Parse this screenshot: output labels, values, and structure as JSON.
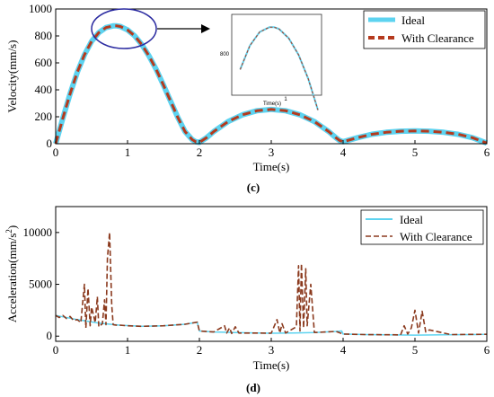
{
  "chart_data": [
    {
      "type": "line",
      "panel_label": "(c)",
      "xlabel": "Time(s)",
      "ylabel": "Velocity(mm/s)",
      "xlim": [
        0,
        6
      ],
      "ylim": [
        0,
        1000
      ],
      "xticks": [
        "0",
        "1",
        "2",
        "3",
        "4",
        "5",
        "6"
      ],
      "yticks": [
        "0",
        "200",
        "400",
        "600",
        "800",
        "1000"
      ],
      "legend_position": "top-right",
      "grid": false,
      "series": [
        {
          "name": "Ideal",
          "color": "#5dd3f0",
          "style": "solid",
          "x": [
            0,
            0.1,
            0.2,
            0.3,
            0.4,
            0.5,
            0.6,
            0.7,
            0.8,
            0.85,
            0.9,
            1.0,
            1.1,
            1.2,
            1.3,
            1.4,
            1.5,
            1.6,
            1.7,
            1.8,
            1.9,
            1.95,
            2.0,
            2.1,
            2.2,
            2.4,
            2.6,
            2.8,
            3.0,
            3.2,
            3.4,
            3.6,
            3.8,
            3.9,
            3.95,
            4.0,
            4.2,
            4.4,
            4.6,
            4.8,
            5.0,
            5.2,
            5.4,
            5.6,
            5.8,
            6.0
          ],
          "y": [
            0,
            190,
            370,
            530,
            660,
            760,
            825,
            862,
            875,
            875,
            870,
            845,
            800,
            735,
            650,
            550,
            435,
            315,
            195,
            90,
            30,
            15,
            10,
            45,
            90,
            165,
            215,
            245,
            255,
            245,
            215,
            165,
            90,
            45,
            25,
            15,
            45,
            70,
            85,
            93,
            95,
            93,
            85,
            70,
            45,
            5
          ]
        },
        {
          "name": "With Clearance",
          "color": "#b53a1e",
          "style": "dashed",
          "x": [
            0,
            0.1,
            0.2,
            0.3,
            0.4,
            0.5,
            0.6,
            0.7,
            0.8,
            0.85,
            0.9,
            1.0,
            1.1,
            1.2,
            1.3,
            1.4,
            1.5,
            1.6,
            1.7,
            1.8,
            1.9,
            1.95,
            2.0,
            2.1,
            2.2,
            2.4,
            2.6,
            2.8,
            3.0,
            3.2,
            3.4,
            3.6,
            3.8,
            3.9,
            3.95,
            4.0,
            4.2,
            4.4,
            4.6,
            4.8,
            5.0,
            5.2,
            5.4,
            5.6,
            5.8,
            6.0
          ],
          "y": [
            0,
            190,
            370,
            530,
            660,
            760,
            825,
            862,
            875,
            875,
            870,
            845,
            800,
            735,
            650,
            550,
            435,
            315,
            195,
            90,
            30,
            15,
            10,
            45,
            90,
            165,
            215,
            245,
            255,
            245,
            215,
            165,
            90,
            45,
            25,
            15,
            45,
            70,
            85,
            93,
            95,
            93,
            85,
            70,
            45,
            5
          ]
        }
      ],
      "inset": {
        "xlabel": "Time(s)",
        "ytick": "800",
        "xtick": "1"
      }
    },
    {
      "type": "line",
      "panel_label": "(d)",
      "xlabel": "Time(s)",
      "ylabel": "Acceleration(mm/s",
      "ylabel_sup": "2",
      "ylabel_end": ")",
      "xlim": [
        0,
        6
      ],
      "ylim": [
        -500,
        12500
      ],
      "xticks": [
        "0",
        "1",
        "2",
        "3",
        "4",
        "5",
        "6"
      ],
      "yticks": [
        "0",
        "5000",
        "10000"
      ],
      "ytick_values": [
        0,
        5000,
        10000
      ],
      "legend_position": "top-right",
      "grid": false,
      "series": [
        {
          "name": "Ideal",
          "color": "#5dd3f0",
          "style": "solid",
          "x": [
            0,
            0.3,
            0.6,
            0.9,
            1.2,
            1.5,
            1.8,
            1.97,
            2.0,
            2.2,
            2.5,
            2.8,
            3.0,
            3.3,
            3.6,
            3.9,
            3.98,
            4.0,
            4.3,
            4.6,
            5.0,
            5.4,
            5.8,
            6.0
          ],
          "y": [
            2000,
            1600,
            1250,
            1050,
            950,
            1000,
            1150,
            1350,
            500,
            400,
            350,
            300,
            280,
            300,
            350,
            450,
            500,
            200,
            150,
            120,
            100,
            120,
            150,
            180
          ]
        },
        {
          "name": "With Clearance",
          "color": "#8b3a1e",
          "style": "dashed",
          "x": [
            0,
            0.05,
            0.1,
            0.15,
            0.2,
            0.25,
            0.3,
            0.35,
            0.4,
            0.42,
            0.45,
            0.48,
            0.5,
            0.55,
            0.58,
            0.6,
            0.65,
            0.68,
            0.7,
            0.72,
            0.75,
            0.78,
            0.8,
            0.85,
            0.9,
            1.0,
            1.2,
            1.5,
            1.8,
            1.97,
            2.0,
            2.2,
            2.35,
            2.38,
            2.42,
            2.45,
            2.5,
            2.55,
            2.8,
            3.0,
            3.08,
            3.12,
            3.15,
            3.2,
            3.35,
            3.38,
            3.4,
            3.42,
            3.45,
            3.48,
            3.5,
            3.55,
            3.6,
            3.9,
            4.0,
            4.3,
            4.8,
            4.85,
            4.9,
            4.95,
            5.0,
            5.05,
            5.1,
            5.15,
            5.2,
            5.5,
            6.0
          ],
          "y": [
            2000,
            1800,
            2000,
            1700,
            1900,
            1500,
            1600,
            1300,
            5000,
            800,
            4600,
            1000,
            2800,
            1300,
            3800,
            900,
            1200,
            3500,
            1100,
            7500,
            10000,
            3000,
            1100,
            1050,
            1050,
            1000,
            950,
            1000,
            1150,
            1350,
            500,
            400,
            1000,
            300,
            800,
            250,
            900,
            300,
            300,
            280,
            1600,
            300,
            1200,
            300,
            900,
            6800,
            500,
            7000,
            800,
            6500,
            1000,
            5000,
            350,
            450,
            200,
            150,
            120,
            1000,
            200,
            800,
            2500,
            300,
            2400,
            400,
            600,
            150,
            180
          ]
        }
      ]
    }
  ]
}
